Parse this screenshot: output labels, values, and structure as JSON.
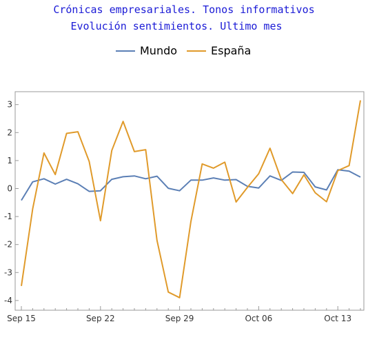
{
  "chart_data": {
    "type": "line",
    "title": "Crónicas empresariales. Tonos informativos",
    "subtitle": "Evolución sentimientos. Ultimo mes",
    "xlabel": "",
    "ylabel": "",
    "x_start_date": "2018-09-15",
    "x": [
      "Sep 15",
      "Sep 16",
      "Sep 17",
      "Sep 18",
      "Sep 19",
      "Sep 20",
      "Sep 21",
      "Sep 22",
      "Sep 23",
      "Sep 24",
      "Sep 25",
      "Sep 26",
      "Sep 27",
      "Sep 28",
      "Sep 29",
      "Sep 30",
      "Oct 01",
      "Oct 02",
      "Oct 03",
      "Oct 04",
      "Oct 05",
      "Oct 06",
      "Oct 07",
      "Oct 08",
      "Oct 09",
      "Oct 10",
      "Oct 11",
      "Oct 12",
      "Oct 13",
      "Oct 14",
      "Oct 15"
    ],
    "x_tick_labels": [
      "Sep 15",
      "Sep 22",
      "Sep 29",
      "Oct 06",
      "Oct 13"
    ],
    "y_ticks": [
      -4,
      -3,
      -2,
      -1,
      0,
      1,
      2,
      3
    ],
    "ylim": [
      -4.1,
      3.3
    ],
    "grid": false,
    "legend_position": "top",
    "series": [
      {
        "name": "Mundo",
        "color": "#5b7fb5",
        "values": [
          -0.42,
          0.24,
          0.35,
          0.16,
          0.33,
          0.17,
          -0.1,
          -0.08,
          0.33,
          0.42,
          0.45,
          0.35,
          0.44,
          0.01,
          -0.08,
          0.3,
          0.3,
          0.38,
          0.3,
          0.32,
          0.08,
          0.02,
          0.45,
          0.29,
          0.59,
          0.58,
          0.06,
          -0.05,
          0.67,
          0.62,
          0.41
        ]
      },
      {
        "name": "España",
        "color": "#e09a2a",
        "values": [
          -3.48,
          -0.73,
          1.27,
          0.5,
          1.97,
          2.03,
          0.97,
          -1.15,
          1.36,
          2.4,
          1.32,
          1.39,
          -1.85,
          -3.7,
          -3.9,
          -1.18,
          0.88,
          0.73,
          0.94,
          -0.48,
          0.04,
          0.53,
          1.44,
          0.32,
          -0.18,
          0.49,
          -0.15,
          -0.47,
          0.64,
          0.82,
          3.15
        ]
      }
    ]
  }
}
